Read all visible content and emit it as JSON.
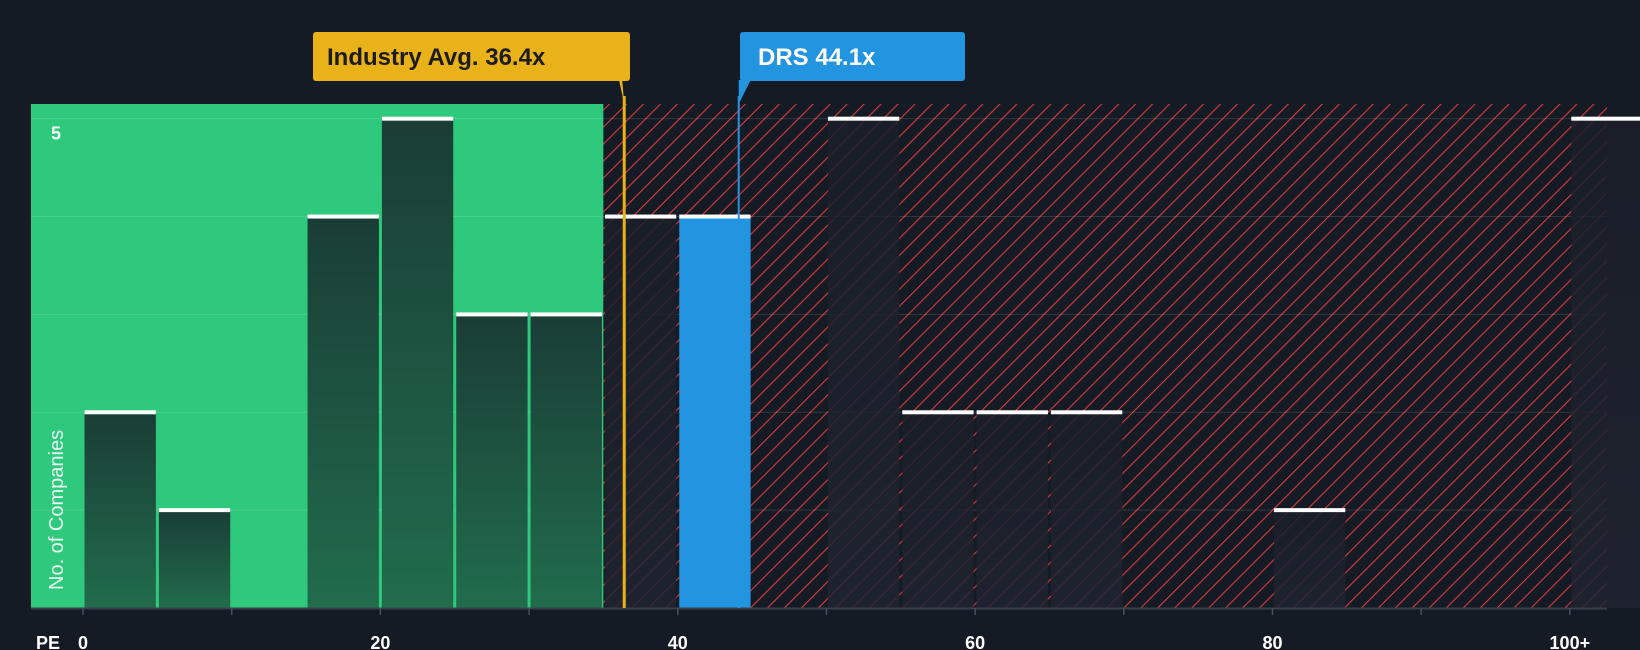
{
  "colors": {
    "background": "#151b24",
    "fair_zone": "#2ec97c",
    "bar_fill": "#1e4d3e",
    "hatch": "#d93b3b",
    "company_bar": "#2394e0",
    "industry_callout": "#eab219",
    "company_callout": "#2394e0",
    "bar_cap": "#ffffff"
  },
  "chart_data": {
    "type": "bar",
    "xlabel": "PE",
    "ylabel": "No. of Companies",
    "x_ticks": [
      {
        "value": 0,
        "label": "0"
      },
      {
        "value": 20,
        "label": "20"
      },
      {
        "value": 40,
        "label": "40"
      },
      {
        "value": 60,
        "label": "60"
      },
      {
        "value": 80,
        "label": "80"
      },
      {
        "value": 100,
        "label": "100+"
      }
    ],
    "y_ticks": [
      {
        "value": 5,
        "label": "5"
      }
    ],
    "xlim": [
      -3.5,
      102.5
    ],
    "ylim": [
      0,
      5.15
    ],
    "bin_width": 5,
    "bins": [
      {
        "start": 0,
        "end": 5,
        "count": 2
      },
      {
        "start": 5,
        "end": 10,
        "count": 1
      },
      {
        "start": 15,
        "end": 20,
        "count": 4
      },
      {
        "start": 20,
        "end": 25,
        "count": 5
      },
      {
        "start": 25,
        "end": 30,
        "count": 3
      },
      {
        "start": 30,
        "end": 35,
        "count": 3
      },
      {
        "start": 35,
        "end": 40,
        "count": 4
      },
      {
        "start": 40,
        "end": 45,
        "count": 4,
        "highlight": true
      },
      {
        "start": 50,
        "end": 55,
        "count": 5
      },
      {
        "start": 55,
        "end": 60,
        "count": 2
      },
      {
        "start": 60,
        "end": 65,
        "count": 2
      },
      {
        "start": 65,
        "end": 70,
        "count": 2
      },
      {
        "start": 80,
        "end": 85,
        "count": 1
      },
      {
        "start": 100,
        "end": 105,
        "count": 5
      }
    ],
    "fair_zone_end": 35,
    "industry_avg": {
      "value": 36.4,
      "label": "Industry Avg. 36.4x"
    },
    "company": {
      "value": 44.1,
      "ticker": "DRS",
      "label": "DRS 44.1x"
    }
  }
}
